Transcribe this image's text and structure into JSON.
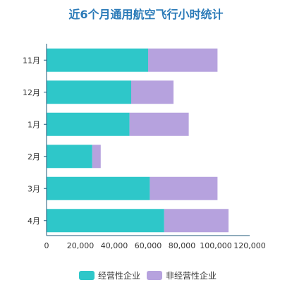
{
  "chart_data": {
    "type": "bar",
    "orientation": "horizontal",
    "stacked": true,
    "title": "近6个月通用航空飞行小时统计",
    "categories": [
      "11月",
      "12月",
      "1月",
      "2月",
      "3月",
      "4月"
    ],
    "series": [
      {
        "name": "经营性企业",
        "values": [
          60000,
          50000,
          49000,
          27000,
          61000,
          69500
        ],
        "color": "#2ec7c9"
      },
      {
        "name": "非经营性企业",
        "values": [
          41000,
          25000,
          35000,
          5000,
          40000,
          38000
        ],
        "color": "#b6a2de"
      }
    ],
    "xlim": [
      0,
      120000
    ],
    "xticks": [
      "0",
      "20,000",
      "40,000",
      "60,000",
      "80,000",
      "100,000",
      "120,000"
    ],
    "grid": false,
    "legend_position": "bottom"
  },
  "colors": {
    "title": "#2a7ab8",
    "axis": "#1f5a7a",
    "text": "#333333"
  }
}
